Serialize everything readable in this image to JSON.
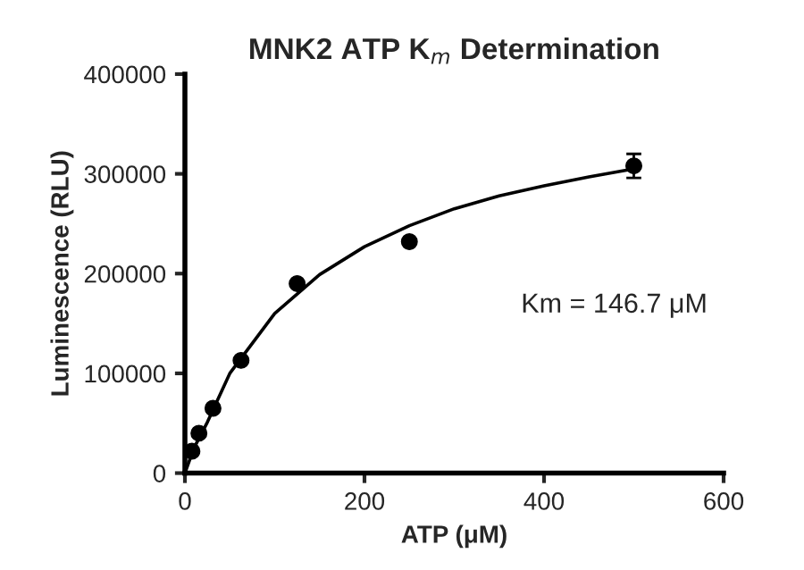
{
  "chart_data": {
    "type": "scatter",
    "title": "MNK2 ATP K$_{m}$ Determination",
    "xlabel": "ATP (μM)",
    "ylabel": "Luminescence (RLU)",
    "annotations": [
      "Km = 146.7 μM"
    ],
    "xlim": [
      0,
      600
    ],
    "xticks": [
      0,
      200,
      400,
      600
    ],
    "ylim": [
      0,
      400000
    ],
    "yticks": [
      0,
      100000,
      200000,
      300000,
      400000
    ],
    "grid": false,
    "legend": false,
    "series": [
      {
        "color": "#000000",
        "marker": "circle",
        "x": [
          7.8,
          15.6,
          31.25,
          62.5,
          125,
          250,
          500
        ],
        "values": [
          22000,
          40000,
          65000,
          113000,
          190000,
          232000,
          308000
        ],
        "errors": [
          null,
          null,
          null,
          null,
          null,
          null,
          12000
        ]
      },
      {
        "type": "line",
        "color": "#000000",
        "marker": "none",
        "line_style": "solid",
        "x": [
          0,
          10,
          25,
          50,
          100,
          150,
          200,
          250,
          300,
          350,
          400,
          450,
          500
        ],
        "values": [
          0,
          25000,
          51000,
          100000,
          160000,
          199000,
          227000,
          248000,
          265000,
          278000,
          288000,
          297000,
          305000
        ]
      }
    ]
  }
}
